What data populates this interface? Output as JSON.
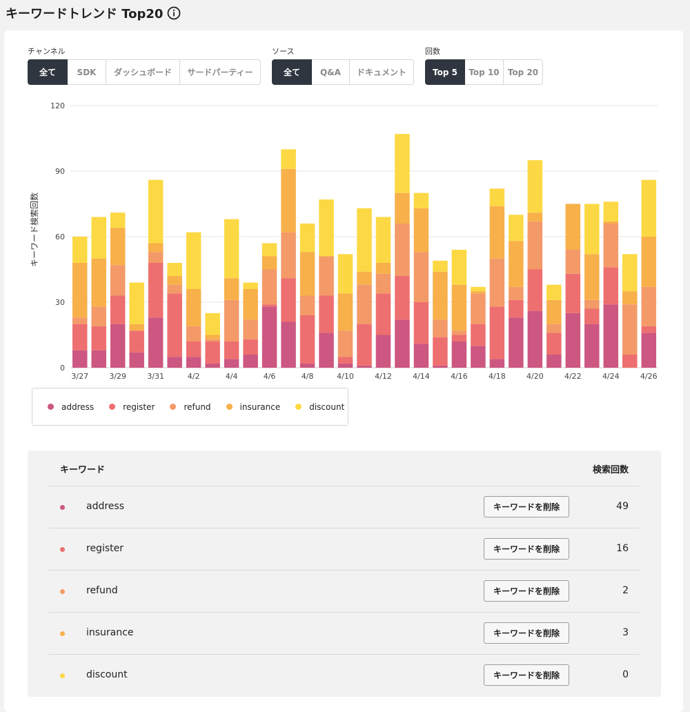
{
  "page": {
    "title": "キーワードトレンド Top20"
  },
  "filters": {
    "channel": {
      "label": "チャンネル",
      "options": [
        "全て",
        "SDK",
        "ダッシュボード",
        "サードパーティー"
      ],
      "selected": 0
    },
    "source": {
      "label": "ソース",
      "options": [
        "全て",
        "Q&A",
        "ドキュメント"
      ],
      "selected": 0
    },
    "count": {
      "label": "回数",
      "options": [
        "Top 5",
        "Top 10",
        "Top 20"
      ],
      "selected": 0
    }
  },
  "chart_data": {
    "type": "bar",
    "stacked": true,
    "ylabel": "キーワード検索回数",
    "ylim": [
      0,
      120
    ],
    "yticks": [
      0,
      30,
      60,
      90,
      120
    ],
    "grid": true,
    "legend_position": "bottom-left",
    "categories": [
      "3/27",
      "3/28",
      "3/29",
      "3/30",
      "3/31",
      "4/1",
      "4/2",
      "4/3",
      "4/4",
      "4/5",
      "4/6",
      "4/7",
      "4/8",
      "4/9",
      "4/10",
      "4/11",
      "4/12",
      "4/13",
      "4/14",
      "4/15",
      "4/16",
      "4/17",
      "4/18",
      "4/19",
      "4/20",
      "4/21",
      "4/22",
      "4/23",
      "4/24",
      "4/25",
      "4/26"
    ],
    "tick_labels": [
      "3/27",
      "",
      "3/29",
      "",
      "3/31",
      "",
      "4/2",
      "",
      "4/4",
      "",
      "4/6",
      "",
      "4/8",
      "",
      "4/10",
      "",
      "4/12",
      "",
      "4/14",
      "",
      "4/16",
      "",
      "4/18",
      "",
      "4/20",
      "",
      "4/22",
      "",
      "4/24",
      "",
      "4/26"
    ],
    "series": [
      {
        "name": "address",
        "color": "#cc5780",
        "values": [
          8,
          8,
          20,
          7,
          23,
          5,
          5,
          2,
          4,
          6,
          28,
          21,
          2,
          16,
          2,
          1,
          15,
          22,
          11,
          1,
          12,
          10,
          4,
          23,
          26,
          6,
          25,
          20,
          29,
          0,
          16
        ]
      },
      {
        "name": "register",
        "color": "#ee6f6f",
        "values": [
          12,
          11,
          13,
          10,
          25,
          29,
          7,
          10,
          8,
          7,
          1,
          20,
          22,
          17,
          3,
          19,
          19,
          20,
          19,
          13,
          3,
          10,
          24,
          8,
          19,
          10,
          18,
          7,
          17,
          6,
          3
        ]
      },
      {
        "name": "refund",
        "color": "#f39a68",
        "values": [
          3,
          9,
          14,
          0,
          5,
          4,
          7,
          1,
          19,
          9,
          16,
          21,
          9,
          18,
          12,
          18,
          9,
          24,
          23,
          8,
          2,
          14,
          22,
          6,
          22,
          4,
          11,
          4,
          20,
          23,
          18
        ]
      },
      {
        "name": "insurance",
        "color": "#f8b04a",
        "values": [
          25,
          22,
          17,
          3,
          4,
          4,
          17,
          2,
          10,
          14,
          6,
          29,
          20,
          0,
          17,
          6,
          5,
          14,
          20,
          22,
          21,
          1,
          24,
          21,
          4,
          11,
          21,
          21,
          1,
          6,
          23
        ]
      },
      {
        "name": "discount",
        "color": "#fcd944",
        "values": [
          12,
          19,
          7,
          19,
          29,
          6,
          26,
          10,
          27,
          3,
          6,
          9,
          13,
          26,
          18,
          29,
          21,
          27,
          7,
          5,
          16,
          2,
          8,
          12,
          24,
          7,
          0,
          23,
          9,
          17,
          26
        ]
      }
    ]
  },
  "legend": [
    {
      "name": "address",
      "color": "#cc5780"
    },
    {
      "name": "register",
      "color": "#ee6f6f"
    },
    {
      "name": "refund",
      "color": "#f39a68"
    },
    {
      "name": "insurance",
      "color": "#f8b04a"
    },
    {
      "name": "discount",
      "color": "#fcd944"
    }
  ],
  "table": {
    "header_keyword": "キーワード",
    "header_count": "検索回数",
    "delete_label": "キーワードを削除",
    "rows": [
      {
        "keyword": "address",
        "color": "#cc5780",
        "count": "49"
      },
      {
        "keyword": "register",
        "color": "#ee6f6f",
        "count": "16"
      },
      {
        "keyword": "refund",
        "color": "#f39a68",
        "count": "2"
      },
      {
        "keyword": "insurance",
        "color": "#f8b04a",
        "count": "3"
      },
      {
        "keyword": "discount",
        "color": "#fcd944",
        "count": "0"
      }
    ]
  }
}
